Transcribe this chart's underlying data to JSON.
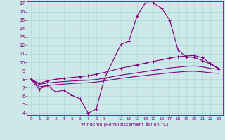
{
  "xlabel": "Windchill (Refroidissement éolien,°C)",
  "bg_color": "#cce8e8",
  "line_color": "#800080",
  "grid_color": "#aad4d4",
  "xlim": [
    -0.5,
    23.5
  ],
  "ylim": [
    3.8,
    17.2
  ],
  "xtick_positions": [
    0,
    1,
    2,
    3,
    4,
    5,
    6,
    7,
    8,
    9,
    11,
    12,
    13,
    14,
    15,
    16,
    17,
    18,
    19,
    20,
    21,
    22,
    23
  ],
  "xtick_labels": [
    "0",
    "1",
    "2",
    "3",
    "4",
    "5",
    "6",
    "7",
    "8",
    "9",
    "11",
    "12",
    "13",
    "14",
    "15",
    "16",
    "17",
    "18",
    "19",
    "20",
    "21",
    "22",
    "23"
  ],
  "ytick_positions": [
    4,
    5,
    6,
    7,
    8,
    9,
    10,
    11,
    12,
    13,
    14,
    15,
    16,
    17
  ],
  "ytick_labels": [
    "4",
    "5",
    "6",
    "7",
    "8",
    "9",
    "10",
    "11",
    "12",
    "13",
    "14",
    "15",
    "16",
    "17"
  ],
  "series": [
    {
      "x": [
        0,
        1,
        2,
        3,
        4,
        5,
        6,
        7,
        8,
        9,
        11,
        12,
        13,
        14,
        15,
        16,
        17,
        18,
        19,
        20,
        21,
        22,
        23
      ],
      "y": [
        8.0,
        6.8,
        7.3,
        6.5,
        6.7,
        6.1,
        5.7,
        4.0,
        4.5,
        8.1,
        12.1,
        12.5,
        15.5,
        17.0,
        17.0,
        16.4,
        15.0,
        11.5,
        10.6,
        10.6,
        10.2,
        9.8,
        9.2
      ],
      "marker": true
    },
    {
      "x": [
        0,
        1,
        2,
        3,
        4,
        5,
        6,
        7,
        8,
        9,
        11,
        12,
        13,
        14,
        15,
        16,
        17,
        18,
        19,
        20,
        21,
        22,
        23
      ],
      "y": [
        8.0,
        7.5,
        7.8,
        8.0,
        8.1,
        8.2,
        8.3,
        8.4,
        8.6,
        8.8,
        9.3,
        9.5,
        9.7,
        9.9,
        10.1,
        10.3,
        10.5,
        10.65,
        10.75,
        10.8,
        10.55,
        9.85,
        9.3
      ],
      "marker": true
    },
    {
      "x": [
        0,
        1,
        2,
        3,
        4,
        5,
        6,
        7,
        8,
        9,
        11,
        12,
        13,
        14,
        15,
        16,
        17,
        18,
        19,
        20,
        21,
        22,
        23
      ],
      "y": [
        8.0,
        7.4,
        7.55,
        7.65,
        7.72,
        7.79,
        7.84,
        7.88,
        7.97,
        8.12,
        8.48,
        8.62,
        8.76,
        8.9,
        9.05,
        9.18,
        9.32,
        9.42,
        9.52,
        9.57,
        9.47,
        9.27,
        9.17
      ],
      "marker": false
    },
    {
      "x": [
        0,
        1,
        2,
        3,
        4,
        5,
        6,
        7,
        8,
        9,
        11,
        12,
        13,
        14,
        15,
        16,
        17,
        18,
        19,
        20,
        21,
        22,
        23
      ],
      "y": [
        8.0,
        7.1,
        7.25,
        7.35,
        7.42,
        7.49,
        7.54,
        7.58,
        7.67,
        7.8,
        8.1,
        8.22,
        8.33,
        8.44,
        8.55,
        8.65,
        8.76,
        8.84,
        8.92,
        8.94,
        8.87,
        8.76,
        8.69
      ],
      "marker": false
    }
  ]
}
